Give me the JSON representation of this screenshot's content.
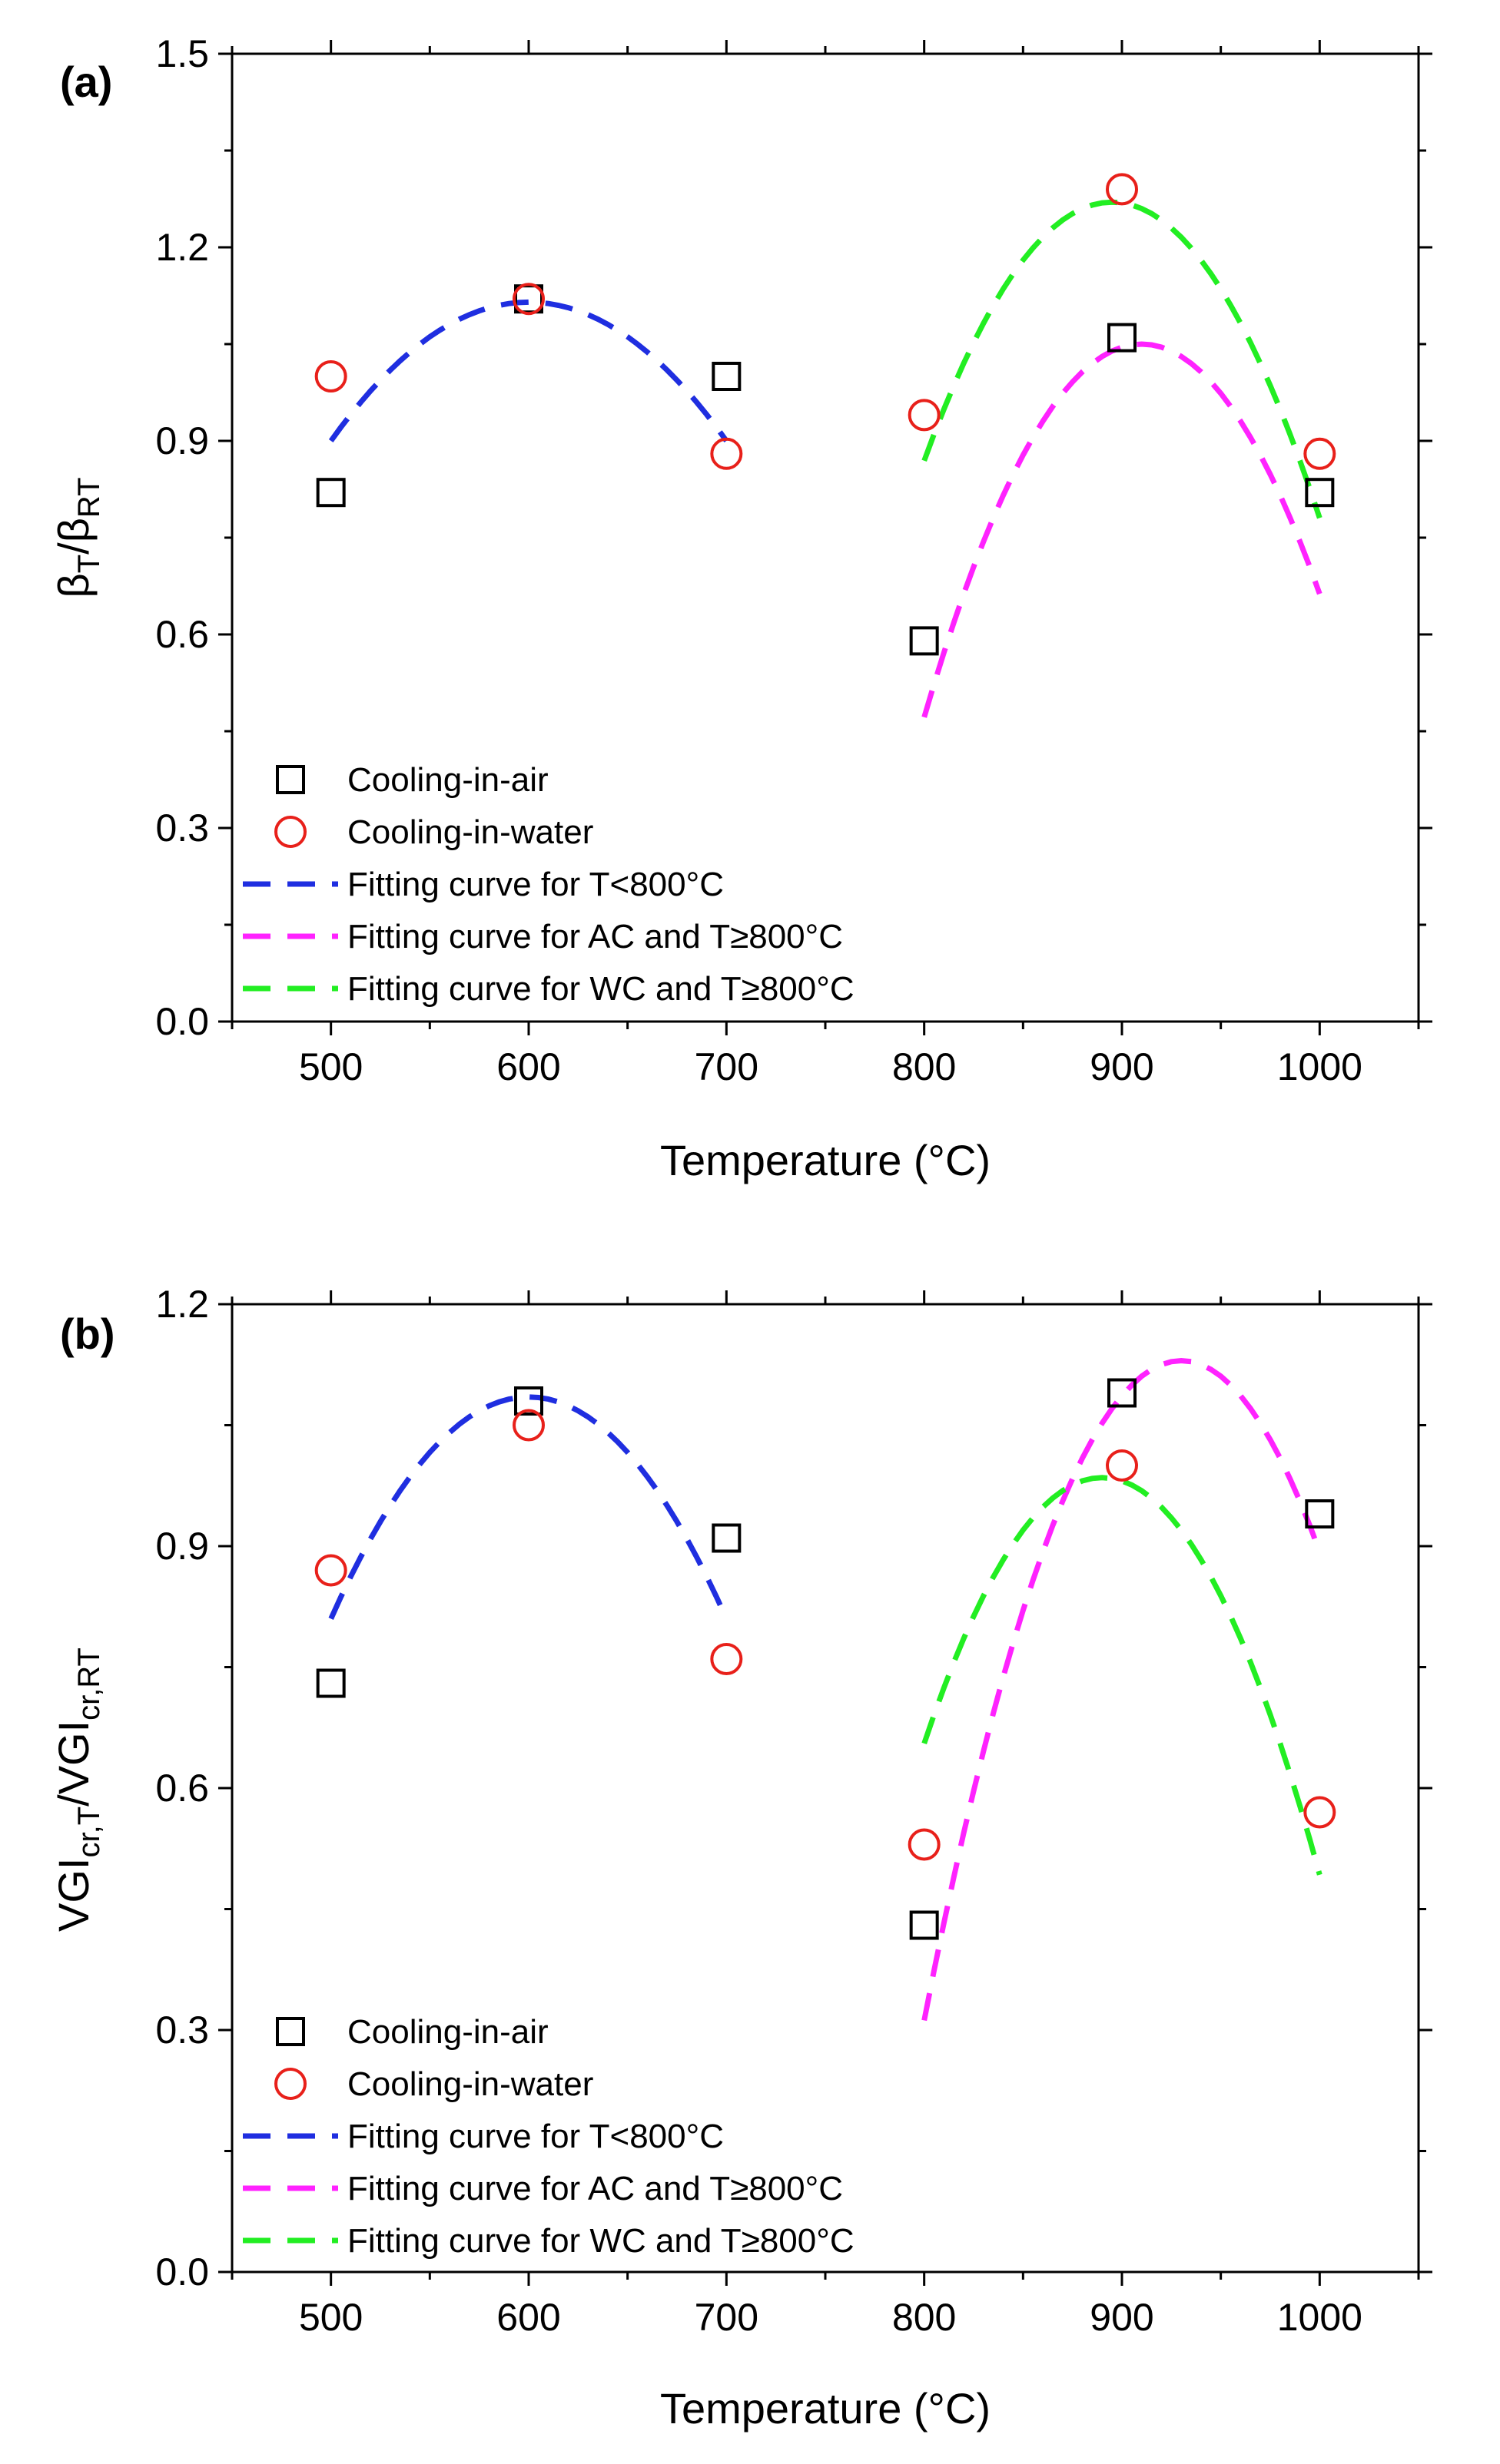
{
  "chart_data": [
    {
      "type": "scatter",
      "panel_label": "(a)",
      "xlabel": "Temperature (°C)",
      "ylabel": {
        "base": "β",
        "sub1": "T",
        "sep": "/",
        "base2": "β",
        "sub2": "RT"
      },
      "xlim": [
        450,
        1050
      ],
      "ylim": [
        0,
        1.5
      ],
      "xticks": [
        500,
        600,
        700,
        800,
        900,
        1000
      ],
      "yticks": [
        0.0,
        0.3,
        0.6,
        0.9,
        1.2,
        1.5
      ],
      "ytick_labels": [
        "0.0",
        "0.3",
        "0.6",
        "0.9",
        "1.2",
        "1.5"
      ],
      "series": [
        {
          "name": "Cooling-in-air",
          "marker": "square",
          "color": "#000000",
          "x": [
            500,
            600,
            700,
            800,
            900,
            1000
          ],
          "y": [
            0.82,
            1.12,
            1.0,
            0.59,
            1.06,
            0.82
          ]
        },
        {
          "name": "Cooling-in-water",
          "marker": "circle",
          "color": "#e8201a",
          "x": [
            500,
            600,
            700,
            800,
            900,
            1000
          ],
          "y": [
            1.0,
            1.12,
            0.88,
            0.94,
            1.29,
            0.88
          ]
        }
      ],
      "curves": [
        {
          "name": "Fitting curve for T<800°C",
          "color": "#1f2ee0",
          "a": -2.15e-05,
          "vertex": 600,
          "peak": 1.115,
          "range": [
            500,
            700
          ]
        },
        {
          "name": "Fitting curve for AC and T≥800°C",
          "color": "#ff22ff",
          "a": -4.78e-05,
          "vertex": 910,
          "peak": 1.05,
          "range": [
            800,
            1000
          ]
        },
        {
          "name": "Fitting curve for WC and T≥800°C",
          "color": "#22ee22",
          "a": -4.44e-05,
          "vertex": 895,
          "peak": 1.27,
          "range": [
            800,
            1000
          ]
        }
      ],
      "legend_position": "bottom-left"
    },
    {
      "type": "scatter",
      "panel_label": "(b)",
      "xlabel": "Temperature (°C)",
      "ylabel": {
        "base": "VGI",
        "sub1": "cr,T",
        "sep": "/",
        "base2": "VGI",
        "sub2": "cr,RT"
      },
      "xlim": [
        450,
        1050
      ],
      "ylim": [
        0,
        1.2
      ],
      "xticks": [
        500,
        600,
        700,
        800,
        900,
        1000
      ],
      "yticks": [
        0.0,
        0.3,
        0.6,
        0.9,
        1.2
      ],
      "ytick_labels": [
        "0.0",
        "0.3",
        "0.6",
        "0.9",
        "1.2"
      ],
      "series": [
        {
          "name": "Cooling-in-air",
          "marker": "square",
          "color": "#000000",
          "x": [
            500,
            600,
            700,
            800,
            900,
            1000
          ],
          "y": [
            0.73,
            1.08,
            0.91,
            0.43,
            1.09,
            0.94
          ]
        },
        {
          "name": "Cooling-in-water",
          "marker": "circle",
          "color": "#e8201a",
          "x": [
            500,
            600,
            700,
            800,
            900,
            1000
          ],
          "y": [
            0.87,
            1.05,
            0.76,
            0.53,
            1.0,
            0.57
          ]
        }
      ],
      "curves": [
        {
          "name": "Fitting curve for T<800°C",
          "color": "#1f2ee0",
          "a": -2.75e-05,
          "vertex": 600,
          "peak": 1.085,
          "range": [
            500,
            700
          ]
        },
        {
          "name": "Fitting curve for AC and T≥800°C",
          "color": "#ff22ff",
          "a": -4.84e-05,
          "vertex": 930,
          "peak": 1.13,
          "range": [
            800,
            1000
          ]
        },
        {
          "name": "Fitting curve for WC and T≥800°C",
          "color": "#22ee22",
          "a": -4.07e-05,
          "vertex": 890,
          "peak": 0.985,
          "range": [
            800,
            1000
          ]
        }
      ],
      "legend_position": "bottom-left"
    }
  ]
}
